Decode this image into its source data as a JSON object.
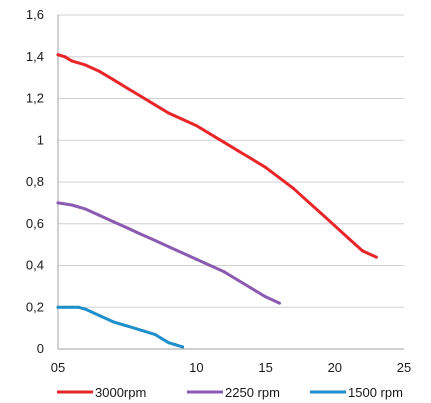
{
  "chart_data": {
    "type": "line",
    "title": "",
    "xlabel": "",
    "ylabel": "",
    "xlim": [
      0,
      25
    ],
    "ylim": [
      0,
      1.6
    ],
    "grid": "horizontal",
    "legend_position": "bottom",
    "x_ticks": [
      {
        "value": 0,
        "label": "05"
      },
      {
        "value": 5,
        "label": ""
      },
      {
        "value": 10,
        "label": "10"
      },
      {
        "value": 15,
        "label": "15"
      },
      {
        "value": 20,
        "label": "20"
      },
      {
        "value": 25,
        "label": "25"
      }
    ],
    "y_ticks": [
      {
        "value": 0,
        "label": "0"
      },
      {
        "value": 0.2,
        "label": "0,2"
      },
      {
        "value": 0.4,
        "label": "0,4"
      },
      {
        "value": 0.6,
        "label": "0,6"
      },
      {
        "value": 0.8,
        "label": "0,8"
      },
      {
        "value": 1.0,
        "label": "1"
      },
      {
        "value": 1.2,
        "label": "1,2"
      },
      {
        "value": 1.4,
        "label": "1,4"
      },
      {
        "value": 1.6,
        "label": "1,6"
      }
    ],
    "series": [
      {
        "name": "3000rpm",
        "color": "#e8262a",
        "x": [
          0,
          0.5,
          1,
          2,
          3,
          4,
          5,
          6,
          7,
          8,
          9,
          10,
          11,
          12,
          13,
          14,
          15,
          16,
          17,
          18,
          19,
          20,
          21,
          22,
          23
        ],
        "y": [
          1.41,
          1.4,
          1.38,
          1.36,
          1.33,
          1.29,
          1.25,
          1.21,
          1.17,
          1.13,
          1.1,
          1.07,
          1.03,
          0.99,
          0.95,
          0.91,
          0.87,
          0.82,
          0.77,
          0.71,
          0.65,
          0.59,
          0.53,
          0.47,
          0.44
        ]
      },
      {
        "name": "2250 rpm",
        "color": "#8a5bb0",
        "x": [
          0,
          1,
          2,
          3,
          4,
          5,
          6,
          7,
          8,
          9,
          10,
          11,
          12,
          13,
          14,
          15,
          16
        ],
        "y": [
          0.7,
          0.69,
          0.67,
          0.64,
          0.61,
          0.58,
          0.55,
          0.52,
          0.49,
          0.46,
          0.43,
          0.4,
          0.37,
          0.33,
          0.29,
          0.25,
          0.22
        ]
      },
      {
        "name": "1500 rpm",
        "color": "#1f8fc9",
        "x": [
          0,
          0.5,
          1,
          1.5,
          2,
          3,
          4,
          5,
          6,
          7,
          7.5,
          8,
          8.5,
          9
        ],
        "y": [
          0.2,
          0.2,
          0.2,
          0.2,
          0.19,
          0.16,
          0.13,
          0.11,
          0.09,
          0.07,
          0.05,
          0.03,
          0.02,
          0.01
        ]
      }
    ]
  }
}
